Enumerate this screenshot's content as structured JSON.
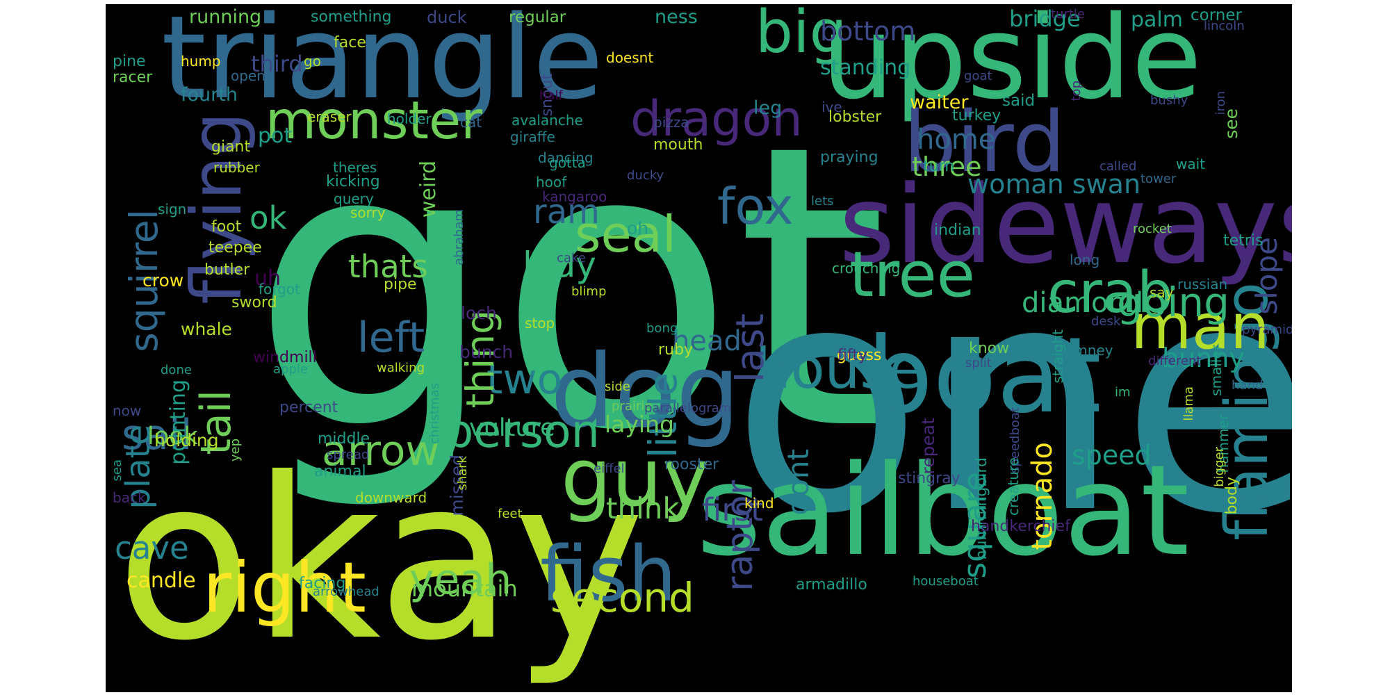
{
  "word_cloud": {
    "background": "#000000",
    "palette": {
      "yellow": "#fde725",
      "lime": "#b5de2b",
      "lightgreen": "#6ece58",
      "green": "#35b779",
      "teal": "#1f9e89",
      "cyan": "#26828e",
      "blue": "#31688e",
      "indigo": "#3e4989",
      "purple": "#482878",
      "darkpurple": "#440154"
    },
    "words": [
      {
        "text": "got",
        "color": "green"
      },
      {
        "text": "one",
        "color": "cyan"
      },
      {
        "text": "okay",
        "color": "lime"
      },
      {
        "text": "triangle",
        "color": "blue"
      },
      {
        "text": "upside",
        "color": "green"
      },
      {
        "text": "sailboat",
        "color": "green"
      },
      {
        "text": "sideways",
        "color": "purple"
      },
      {
        "text": "boat",
        "color": "cyan"
      },
      {
        "text": "bird",
        "color": "indigo"
      },
      {
        "text": "dog",
        "color": "blue"
      },
      {
        "text": "flying",
        "color": "indigo"
      },
      {
        "text": "flamingo",
        "color": "cyan"
      },
      {
        "text": "right",
        "color": "yellow"
      },
      {
        "text": "fish",
        "color": "blue"
      },
      {
        "text": "guy",
        "color": "lightgreen"
      },
      {
        "text": "house",
        "color": "cyan"
      },
      {
        "text": "tree",
        "color": "green"
      },
      {
        "text": "crab",
        "color": "green"
      },
      {
        "text": "man",
        "color": "lime"
      },
      {
        "text": "big",
        "color": "green"
      },
      {
        "text": "monster",
        "color": "lightgreen"
      },
      {
        "text": "dragon",
        "color": "purple"
      },
      {
        "text": "seal",
        "color": "lightgreen"
      },
      {
        "text": "fox",
        "color": "blue"
      },
      {
        "text": "going",
        "color": "green"
      },
      {
        "text": "person",
        "color": "green"
      },
      {
        "text": "yeah",
        "color": "lightgreen"
      },
      {
        "text": "second",
        "color": "lime"
      },
      {
        "text": "two",
        "color": "cyan"
      },
      {
        "text": "arrow",
        "color": "lightgreen"
      },
      {
        "text": "sail",
        "color": "blue"
      },
      {
        "text": "squirrel",
        "color": "blue"
      },
      {
        "text": "plate",
        "color": "cyan"
      },
      {
        "text": "tail",
        "color": "lightgreen"
      },
      {
        "text": "left",
        "color": "blue"
      },
      {
        "text": "cave",
        "color": "cyan"
      },
      {
        "text": "thing",
        "color": "lightgreen"
      },
      {
        "text": "little",
        "color": "cyan"
      },
      {
        "text": "last",
        "color": "indigo"
      },
      {
        "text": "raptor",
        "color": "indigo"
      },
      {
        "text": "lady",
        "color": "green"
      },
      {
        "text": "ram",
        "color": "blue"
      },
      {
        "text": "ok",
        "color": "green"
      },
      {
        "text": "thats",
        "color": "lightgreen"
      },
      {
        "text": "head",
        "color": "blue"
      },
      {
        "text": "first",
        "color": "indigo"
      },
      {
        "text": "think",
        "color": "lightgreen"
      },
      {
        "text": "dont",
        "color": "cyan"
      },
      {
        "text": "square",
        "color": "teal"
      },
      {
        "text": "tornado",
        "color": "yellow"
      },
      {
        "text": "speed",
        "color": "teal"
      },
      {
        "text": "diamond",
        "color": "green"
      },
      {
        "text": "woman swan",
        "color": "cyan"
      },
      {
        "text": "slope",
        "color": "indigo"
      },
      {
        "text": "home",
        "color": "blue"
      },
      {
        "text": "three",
        "color": "lightgreen"
      },
      {
        "text": "bunny",
        "color": "teal"
      },
      {
        "text": "vulture",
        "color": "green"
      },
      {
        "text": "laying",
        "color": "lightgreen"
      },
      {
        "text": "mountain",
        "color": "lightgreen"
      },
      {
        "text": "candle",
        "color": "yellow"
      },
      {
        "text": "look",
        "color": "lightgreen"
      },
      {
        "text": "pot",
        "color": "teal"
      },
      {
        "text": "uh",
        "color": "darkpurple"
      },
      {
        "text": "pointing",
        "color": "teal"
      },
      {
        "text": "bottom",
        "color": "indigo"
      },
      {
        "text": "bridge",
        "color": "teal"
      },
      {
        "text": "palm",
        "color": "teal"
      },
      {
        "text": "third",
        "color": "indigo"
      },
      {
        "text": "standing",
        "color": "teal"
      },
      {
        "text": "fourth",
        "color": "cyan"
      },
      {
        "text": "leg",
        "color": "cyan"
      },
      {
        "text": "waiter",
        "color": "yellow"
      },
      {
        "text": "said",
        "color": "teal"
      },
      {
        "text": "weird",
        "color": "lightgreen"
      },
      {
        "text": "running",
        "color": "lightgreen"
      },
      {
        "text": "something",
        "color": "teal"
      },
      {
        "text": "duck",
        "color": "indigo"
      },
      {
        "text": "regular",
        "color": "lightgreen"
      },
      {
        "text": "ness",
        "color": "teal"
      },
      {
        "text": "corner",
        "color": "teal"
      },
      {
        "text": "lincoln",
        "color": "indigo"
      },
      {
        "text": "turtle",
        "color": "purple"
      },
      {
        "text": "face",
        "color": "lime"
      },
      {
        "text": "pine",
        "color": "teal"
      },
      {
        "text": "hump",
        "color": "yellow"
      },
      {
        "text": "go",
        "color": "lime"
      },
      {
        "text": "racer",
        "color": "lightgreen"
      },
      {
        "text": "open",
        "color": "blue"
      },
      {
        "text": "doesnt",
        "color": "yellow"
      },
      {
        "text": "snout",
        "color": "indigo"
      },
      {
        "text": "goat",
        "color": "indigo"
      },
      {
        "text": "top",
        "color": "purple"
      },
      {
        "text": "half",
        "color": "darkpurple"
      },
      {
        "text": "bushy",
        "color": "indigo"
      },
      {
        "text": "iron",
        "color": "indigo"
      },
      {
        "text": "eraser",
        "color": "lime"
      },
      {
        "text": "holder",
        "color": "teal"
      },
      {
        "text": "cat",
        "color": "blue"
      },
      {
        "text": "avalanche",
        "color": "teal"
      },
      {
        "text": "pizza",
        "color": "indigo"
      },
      {
        "text": "ive",
        "color": "indigo"
      },
      {
        "text": "lobster",
        "color": "lime"
      },
      {
        "text": "turkey",
        "color": "teal"
      },
      {
        "text": "see",
        "color": "lightgreen"
      },
      {
        "text": "mouth",
        "color": "lime"
      },
      {
        "text": "giraffe",
        "color": "cyan"
      },
      {
        "text": "dancing",
        "color": "cyan"
      },
      {
        "text": "giant",
        "color": "lime"
      },
      {
        "text": "rubber",
        "color": "lime"
      },
      {
        "text": "theres",
        "color": "teal"
      },
      {
        "text": "gotta",
        "color": "teal"
      },
      {
        "text": "hoof",
        "color": "teal"
      },
      {
        "text": "ducky",
        "color": "indigo"
      },
      {
        "text": "praying",
        "color": "cyan"
      },
      {
        "text": "turn",
        "color": "teal"
      },
      {
        "text": "called",
        "color": "indigo"
      },
      {
        "text": "tower",
        "color": "blue"
      },
      {
        "text": "wait",
        "color": "teal"
      },
      {
        "text": "kicking",
        "color": "teal"
      },
      {
        "text": "query",
        "color": "teal"
      },
      {
        "text": "sorry",
        "color": "lime"
      },
      {
        "text": "sign",
        "color": "teal"
      },
      {
        "text": "kangaroo",
        "color": "purple"
      },
      {
        "text": "lets",
        "color": "cyan"
      },
      {
        "text": "oh",
        "color": "teal"
      },
      {
        "text": "foot",
        "color": "lime"
      },
      {
        "text": "teepee",
        "color": "lime"
      },
      {
        "text": "butler",
        "color": "lime"
      },
      {
        "text": "abraham",
        "color": "blue"
      },
      {
        "text": "indian",
        "color": "teal"
      },
      {
        "text": "rocket",
        "color": "lightgreen"
      },
      {
        "text": "tetris",
        "color": "teal"
      },
      {
        "text": "long",
        "color": "blue"
      },
      {
        "text": "cake",
        "color": "indigo"
      },
      {
        "text": "crouching",
        "color": "green"
      },
      {
        "text": "say",
        "color": "lime"
      },
      {
        "text": "russian",
        "color": "cyan"
      },
      {
        "text": "crow",
        "color": "yellow"
      },
      {
        "text": "sword",
        "color": "lime"
      },
      {
        "text": "forgot",
        "color": "teal"
      },
      {
        "text": "pipe",
        "color": "lime"
      },
      {
        "text": "loch",
        "color": "purple"
      },
      {
        "text": "blimp",
        "color": "lime"
      },
      {
        "text": "whale",
        "color": "lime"
      },
      {
        "text": "stop",
        "color": "lime"
      },
      {
        "text": "bong",
        "color": "teal"
      },
      {
        "text": "windmill",
        "color": "darkpurple"
      },
      {
        "text": "apple",
        "color": "teal"
      },
      {
        "text": "bunch",
        "color": "purple"
      },
      {
        "text": "ruby",
        "color": "lime"
      },
      {
        "text": "guess",
        "color": "yellow"
      },
      {
        "text": "know",
        "color": "lightgreen"
      },
      {
        "text": "chimney",
        "color": "cyan"
      },
      {
        "text": "desk",
        "color": "indigo"
      },
      {
        "text": "straight",
        "color": "teal"
      },
      {
        "text": "pyramid",
        "color": "indigo"
      },
      {
        "text": "smaller",
        "color": "teal"
      },
      {
        "text": "different",
        "color": "purple"
      },
      {
        "text": "done",
        "color": "teal"
      },
      {
        "text": "walking",
        "color": "lime"
      },
      {
        "text": "fifty",
        "color": "purple"
      },
      {
        "text": "split",
        "color": "indigo"
      },
      {
        "text": "side",
        "color": "lime"
      },
      {
        "text": "christmas",
        "color": "teal"
      },
      {
        "text": "now",
        "color": "indigo"
      },
      {
        "text": "percent",
        "color": "indigo"
      },
      {
        "text": "prairie",
        "color": "lightgreen"
      },
      {
        "text": "parallelogram",
        "color": "indigo"
      },
      {
        "text": "repeat",
        "color": "purple"
      },
      {
        "text": "speedboat",
        "color": "indigo"
      },
      {
        "text": "im",
        "color": "green"
      },
      {
        "text": "llama",
        "color": "lime"
      },
      {
        "text": "holding",
        "color": "lime"
      },
      {
        "text": "middle",
        "color": "teal"
      },
      {
        "text": "yep",
        "color": "lightgreen"
      },
      {
        "text": "spread",
        "color": "indigo"
      },
      {
        "text": "animal",
        "color": "teal"
      },
      {
        "text": "eiffel",
        "color": "indigo"
      },
      {
        "text": "rooster",
        "color": "blue"
      },
      {
        "text": "hand",
        "color": "blue"
      },
      {
        "text": "hammer",
        "color": "teal"
      },
      {
        "text": "missed",
        "color": "indigo"
      },
      {
        "text": "shark",
        "color": "lime"
      },
      {
        "text": "stingray",
        "color": "indigo"
      },
      {
        "text": "creature",
        "color": "teal"
      },
      {
        "text": "hummingbird",
        "color": "teal"
      },
      {
        "text": "bigger",
        "color": "lime"
      },
      {
        "text": "body",
        "color": "lime"
      },
      {
        "text": "sea",
        "color": "teal"
      },
      {
        "text": "back",
        "color": "purple"
      },
      {
        "text": "downward",
        "color": "lime"
      },
      {
        "text": "feet",
        "color": "lime"
      },
      {
        "text": "kind",
        "color": "yellow"
      },
      {
        "text": "handkerchief",
        "color": "purple"
      },
      {
        "text": "facing",
        "color": "teal"
      },
      {
        "text": "arrowhead",
        "color": "cyan"
      },
      {
        "text": "armadillo",
        "color": "teal"
      },
      {
        "text": "houseboat",
        "color": "teal"
      }
    ]
  }
}
